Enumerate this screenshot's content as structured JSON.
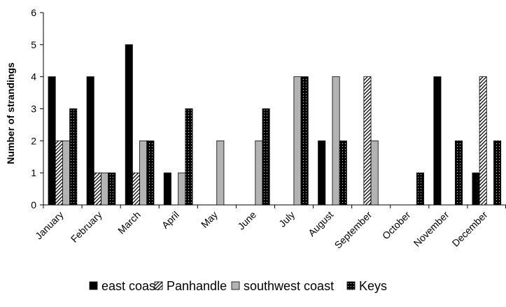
{
  "chart_data": {
    "type": "bar",
    "ylabel": "Number of strandings",
    "xlabel": "",
    "ylim": [
      0,
      6
    ],
    "yticks": [
      0,
      1,
      2,
      3,
      4,
      5,
      6
    ],
    "grid": false,
    "legend_position": "bottom",
    "categories": [
      "January",
      "February",
      "March",
      "April",
      "May",
      "June",
      "July",
      "August",
      "September",
      "October",
      "November",
      "December"
    ],
    "series": [
      {
        "name": "east coast",
        "fill": "solid-black",
        "values": [
          4,
          4,
          5,
          1,
          0,
          0,
          0,
          2,
          0,
          0,
          4,
          1
        ]
      },
      {
        "name": "Panhandle",
        "fill": "diagonal-hatch",
        "values": [
          2,
          1,
          1,
          0,
          0,
          0,
          0,
          0,
          4,
          0,
          0,
          4
        ]
      },
      {
        "name": "southwest coast",
        "fill": "solid-gray",
        "values": [
          2,
          1,
          2,
          1,
          2,
          2,
          4,
          4,
          2,
          0,
          0,
          0
        ]
      },
      {
        "name": "Keys",
        "fill": "dotted-black",
        "values": [
          3,
          1,
          2,
          3,
          0,
          3,
          4,
          2,
          0,
          1,
          2,
          2
        ]
      }
    ],
    "colors": {
      "axis": "#000000",
      "gray": "#b3b3b3",
      "black": "#000000"
    }
  }
}
